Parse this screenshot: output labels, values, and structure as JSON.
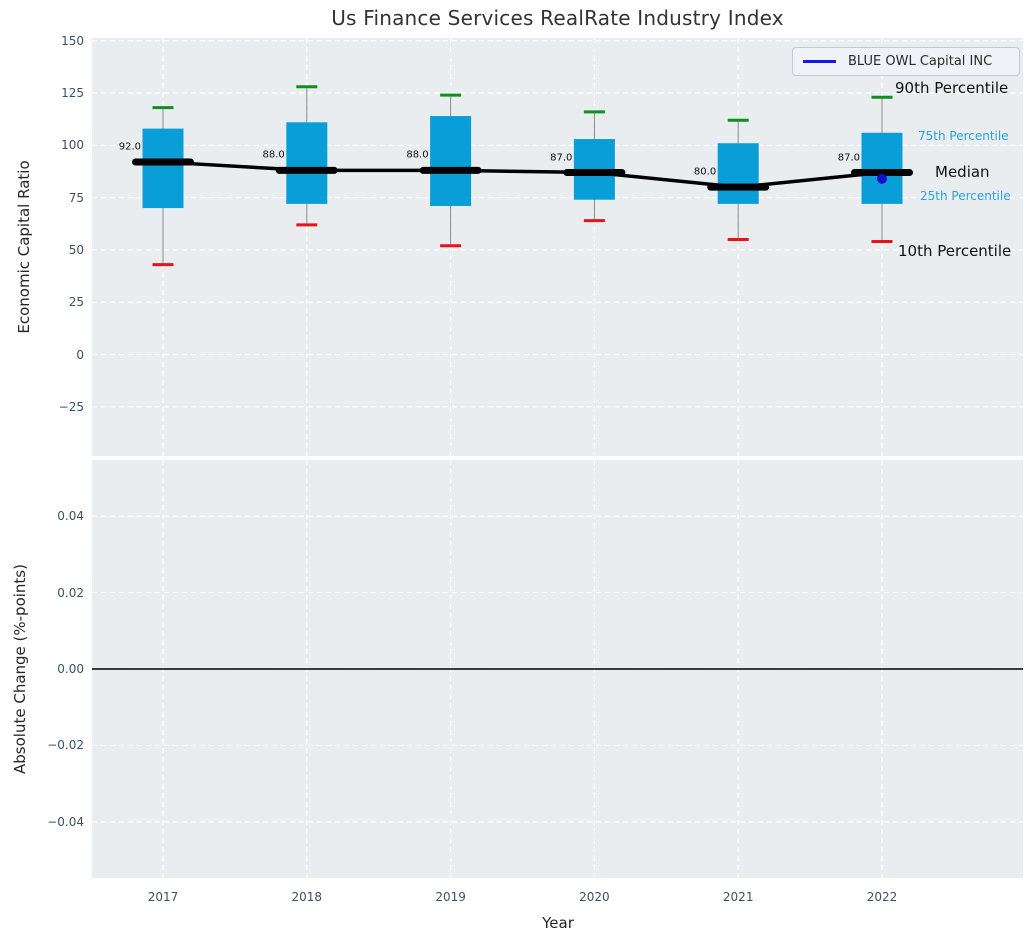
{
  "title": "Us Finance Services RealRate Industry Index",
  "legend": {
    "label": "BLUE OWL Capital INC"
  },
  "colors": {
    "plot_background": "#e9edf0",
    "grid": "#ffffff",
    "box_fill": "#0a9ed9",
    "cap_top_green": "#0e8f1e",
    "cap_bottom_red": "#e8131a",
    "whisker_gray": "#8a8a8a",
    "median_black": "#000000",
    "company_line_blue": "#1515ee",
    "company_dot_blue": "#1111cc",
    "tick_text": "#3d5166",
    "percentile_blue": "#29a3d7",
    "zero_line": "#000000"
  },
  "chart_data": [
    {
      "type": "boxplot",
      "title": "Us Finance Services RealRate Industry Index",
      "xlabel": "Year",
      "ylabel": "Economic Capital Ratio",
      "categories": [
        "2017",
        "2018",
        "2019",
        "2020",
        "2021",
        "2022"
      ],
      "ylim": [
        -48.5,
        151.3
      ],
      "yticks": {
        "values": [
          150,
          125,
          100,
          75,
          50,
          25,
          0,
          -25
        ],
        "labels": [
          "150",
          "125",
          "100",
          "75",
          "50",
          "25",
          "0",
          "−25"
        ]
      },
      "grid": true,
      "legend_position": "upper right",
      "series": {
        "p90": [
          118,
          128,
          124,
          116,
          112,
          123
        ],
        "p75": [
          108,
          111,
          114,
          103,
          101,
          106
        ],
        "median": [
          92,
          88,
          88,
          87,
          80,
          87
        ],
        "p25": [
          70,
          72,
          71,
          74,
          72,
          72
        ],
        "p10": [
          43,
          62,
          52,
          64,
          55,
          54
        ]
      },
      "median_labels": [
        "92.0",
        "88.0",
        "88.0",
        "87.0",
        "80.0",
        "87.0"
      ],
      "company_point": {
        "name": "BLUE OWL Capital INC",
        "year": "2022",
        "value": 84
      },
      "percentile_labels": [
        {
          "key": "p90",
          "text": "90th Percentile",
          "style": "big"
        },
        {
          "key": "p75",
          "text": "75th Percentile",
          "style": "small"
        },
        {
          "key": "median",
          "text": "Median",
          "style": "big"
        },
        {
          "key": "p25",
          "text": "25th Percentile",
          "style": "small"
        },
        {
          "key": "p10",
          "text": "10th Percentile",
          "style": "big"
        }
      ]
    },
    {
      "type": "line",
      "xlabel": "Year",
      "ylabel": "Absolute Change (%-points)",
      "ylim": [
        -0.0547,
        0.0547
      ],
      "yticks": {
        "values": [
          0.04,
          0.02,
          0,
          -0.02,
          -0.04
        ],
        "labels": [
          "0.04",
          "0.02",
          "0.00",
          "−0.02",
          "−0.04"
        ]
      },
      "grid": true,
      "zero_line": 0,
      "series": []
    }
  ]
}
